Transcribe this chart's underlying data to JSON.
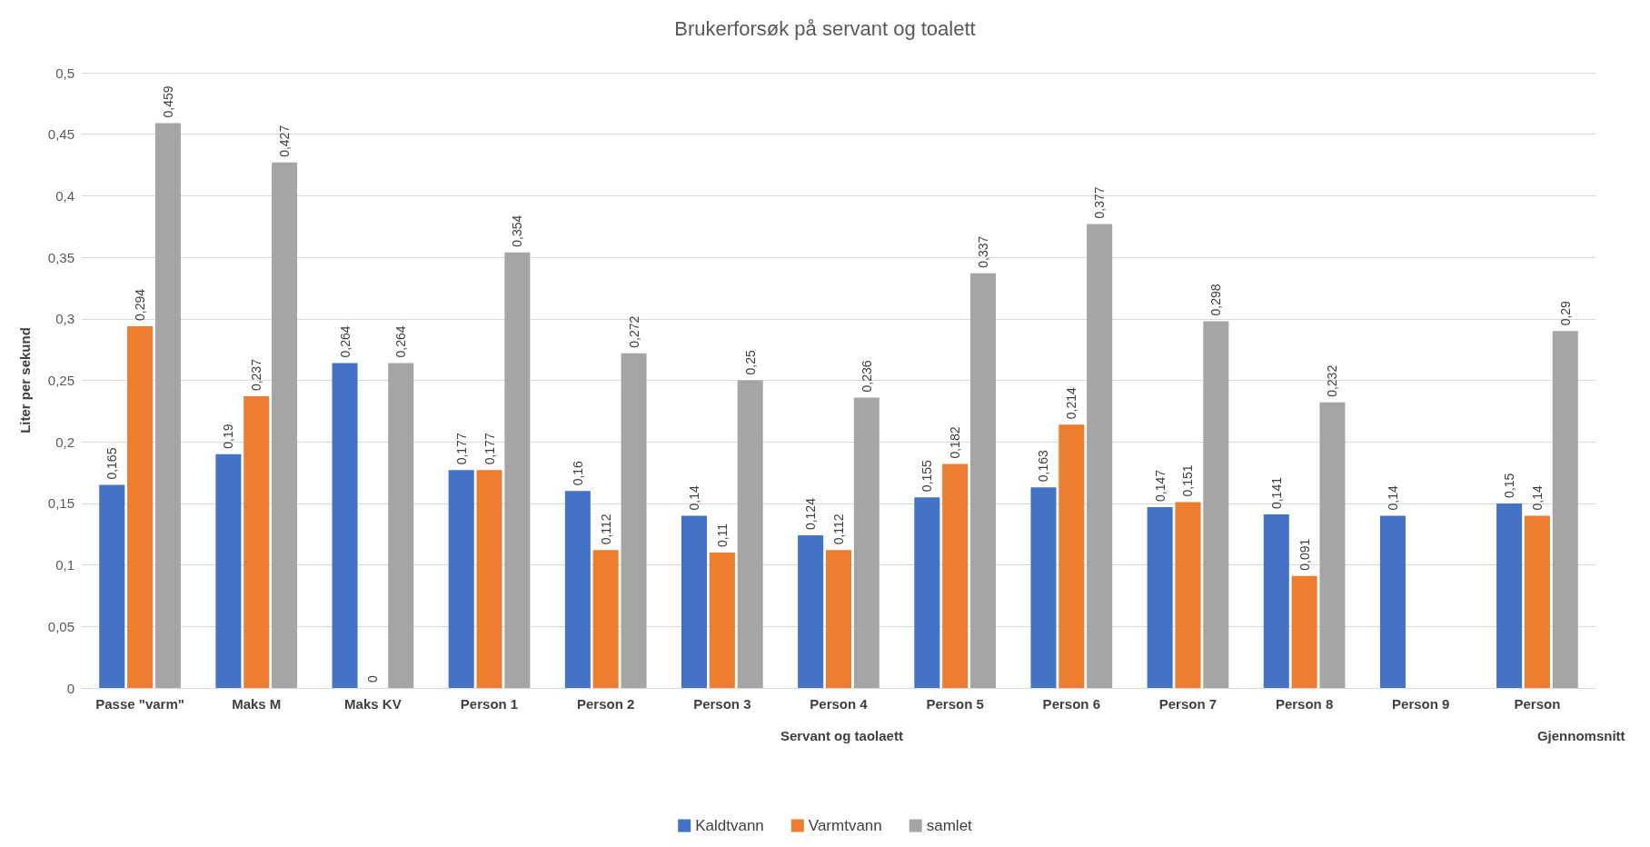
{
  "chart_data": {
    "type": "bar",
    "title": "Brukerforsøk på servant og toalett",
    "ylabel": "Liter per sekund",
    "categories": [
      "Passe \"varm\"",
      "Maks M",
      "Maks KV",
      "Person 1",
      "Person 2",
      "Person 3",
      "Person 4",
      "Person 5",
      "Person 6",
      "Person 7",
      "Person 8",
      "Person 9",
      "Person"
    ],
    "series": [
      {
        "name": "Kaldtvann",
        "color": "#4472c4",
        "values": [
          0.165,
          0.19,
          0.264,
          0.177,
          0.16,
          0.14,
          0.124,
          0.155,
          0.163,
          0.147,
          0.141,
          0.14,
          0.15
        ],
        "value_labels": [
          "0,165",
          "0,19",
          "0,264",
          "0,177",
          "0,16",
          "0,14",
          "0,124",
          "0,155",
          "0,163",
          "0,147",
          "0,141",
          "0,14",
          "0,15"
        ]
      },
      {
        "name": "Varmtvann",
        "color": "#ed7d31",
        "values": [
          0.294,
          0.237,
          0,
          0.177,
          0.112,
          0.11,
          0.112,
          0.182,
          0.214,
          0.151,
          0.091,
          null,
          0.14
        ],
        "value_labels": [
          "0,294",
          "0,237",
          "0",
          "0,177",
          "0,112",
          "0,11",
          "0,112",
          "0,182",
          "0,214",
          "0,151",
          "0,091",
          null,
          "0,14"
        ]
      },
      {
        "name": "samlet",
        "color": "#a5a5a5",
        "values": [
          0.459,
          0.427,
          0.264,
          0.354,
          0.272,
          0.25,
          0.236,
          0.337,
          0.377,
          0.298,
          0.232,
          null,
          0.29
        ],
        "value_labels": [
          "0,459",
          "0,427",
          "0,264",
          "0,354",
          "0,272",
          "0,25",
          "0,236",
          "0,337",
          "0,377",
          "0,298",
          "0,232",
          null,
          "0,29"
        ]
      }
    ],
    "ylim": [
      0,
      0.5
    ],
    "yticks": [
      {
        "value": 0,
        "label": "0"
      },
      {
        "value": 0.05,
        "label": "0,05"
      },
      {
        "value": 0.1,
        "label": "0,1"
      },
      {
        "value": 0.15,
        "label": "0,15"
      },
      {
        "value": 0.2,
        "label": "0,2"
      },
      {
        "value": 0.25,
        "label": "0,25"
      },
      {
        "value": 0.3,
        "label": "0,3"
      },
      {
        "value": 0.35,
        "label": "0,35"
      },
      {
        "value": 0.4,
        "label": "0,4"
      },
      {
        "value": 0.45,
        "label": "0,45"
      },
      {
        "value": 0.5,
        "label": "0,5"
      }
    ],
    "annotations": [
      "Servant og taolaett",
      "Gjennomsnitt"
    ],
    "grid": "y",
    "legend": "bottom"
  }
}
